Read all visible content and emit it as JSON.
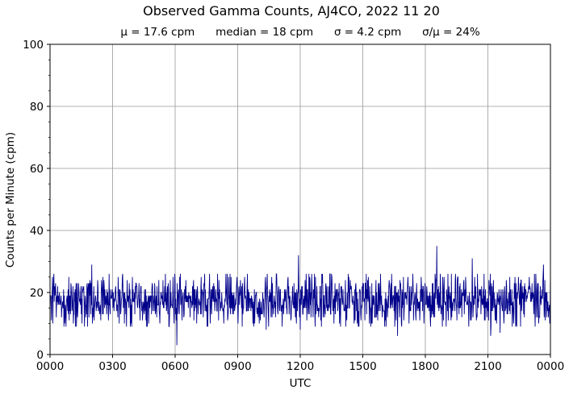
{
  "chart_data": {
    "type": "line",
    "title": "Observed Gamma Counts, AJ4CO, 2022 11 20",
    "subtitle": {
      "mean": "μ = 17.6 cpm",
      "median": "median = 18 cpm",
      "sigma": "σ = 4.2 cpm",
      "ratio": "σ/μ = 24%"
    },
    "xlabel": "UTC",
    "ylabel": "Counts per Minute (cpm)",
    "x_ticks": [
      "0000",
      "0300",
      "0600",
      "0900",
      "1200",
      "1500",
      "1800",
      "2100",
      "0000"
    ],
    "y_ticks": [
      0,
      20,
      40,
      60,
      80,
      100
    ],
    "ylim": [
      0,
      100
    ],
    "x_range_minutes": [
      0,
      1440
    ],
    "grid": true,
    "series": [
      {
        "color": "#00008b",
        "summary": {
          "mean": 17.6,
          "median": 18,
          "sigma": 4.2
        },
        "notable_points": [
          {
            "x_minute": 8,
            "y": 10
          },
          {
            "x_minute": 120,
            "y": 29
          },
          {
            "x_minute": 365,
            "y": 3
          },
          {
            "x_minute": 622,
            "y": 8
          },
          {
            "x_minute": 715,
            "y": 32
          },
          {
            "x_minute": 720,
            "y": 8
          },
          {
            "x_minute": 1000,
            "y": 6
          },
          {
            "x_minute": 1113,
            "y": 35
          },
          {
            "x_minute": 1215,
            "y": 31
          },
          {
            "x_minute": 1268,
            "y": 6
          },
          {
            "x_minute": 1295,
            "y": 7
          },
          {
            "x_minute": 1420,
            "y": 29
          },
          {
            "x_minute": 1438,
            "y": 10
          }
        ]
      }
    ]
  }
}
